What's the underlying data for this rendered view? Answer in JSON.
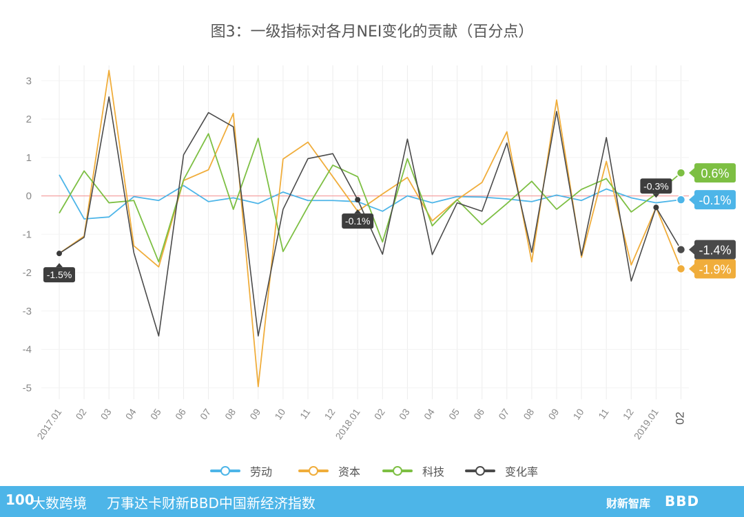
{
  "chart_data": {
    "type": "line",
    "title": "图3：一级指标对各月NEI变化的贡献（百分点）",
    "x": [
      "2017.01",
      "02",
      "03",
      "04",
      "05",
      "06",
      "07",
      "08",
      "09",
      "10",
      "11",
      "12",
      "2018.01",
      "02",
      "03",
      "04",
      "05",
      "06",
      "07",
      "08",
      "09",
      "10",
      "11",
      "12",
      "2019.01",
      "02"
    ],
    "ylim": [
      -5.3,
      3.4
    ],
    "yticks": [
      3,
      2,
      1,
      0,
      -1,
      -2,
      -3,
      -4,
      -5
    ],
    "grid": true,
    "legend_position": "bottom",
    "series": [
      {
        "name": "劳动",
        "color": "#4db5e8",
        "values": [
          0.55,
          -0.6,
          -0.55,
          -0.02,
          -0.12,
          0.27,
          -0.15,
          -0.05,
          -0.2,
          0.1,
          -0.12,
          -0.12,
          -0.15,
          -0.4,
          0.0,
          -0.18,
          -0.02,
          -0.03,
          -0.08,
          -0.15,
          0.02,
          -0.12,
          0.18,
          -0.05,
          -0.18,
          -0.1
        ]
      },
      {
        "name": "资本",
        "color": "#f0ad3b",
        "values": [
          -1.5,
          -1.05,
          3.27,
          -1.3,
          -1.85,
          0.4,
          0.68,
          2.15,
          -4.97,
          0.96,
          1.4,
          0.5,
          -0.4,
          0.05,
          0.48,
          -0.65,
          -0.1,
          0.35,
          1.67,
          -1.72,
          2.5,
          -1.6,
          0.9,
          -1.8,
          -0.3,
          -1.9
        ]
      },
      {
        "name": "科技",
        "color": "#7dbf43",
        "values": [
          -0.45,
          0.65,
          -0.18,
          -0.12,
          -1.72,
          0.42,
          1.62,
          -0.35,
          1.5,
          -1.45,
          -0.28,
          0.8,
          0.5,
          -1.2,
          0.97,
          -0.78,
          -0.1,
          -0.75,
          -0.2,
          0.38,
          -0.35,
          0.17,
          0.45,
          -0.42,
          0.05,
          0.6
        ]
      },
      {
        "name": "变化率",
        "color": "#4a4a4a",
        "values": [
          -1.5,
          -1.08,
          2.58,
          -1.48,
          -3.65,
          1.07,
          2.17,
          1.8,
          -3.65,
          -0.35,
          0.97,
          1.1,
          -0.1,
          -1.52,
          1.48,
          -1.53,
          -0.18,
          -0.4,
          1.38,
          -1.47,
          2.2,
          -1.55,
          1.52,
          -2.22,
          -0.3,
          -1.4
        ]
      }
    ],
    "annotations": [
      {
        "text": "-1.5%",
        "index": 0,
        "series": "变化率"
      },
      {
        "text": "-0.1%",
        "index": 12,
        "series": "变化率"
      },
      {
        "text": "-0.3%",
        "index": 24,
        "series": "变化率"
      }
    ],
    "end_labels": [
      {
        "text": "0.6%",
        "series": "科技"
      },
      {
        "text": "-0.1%",
        "series": "劳动"
      },
      {
        "text": "-1.4%",
        "series": "变化率"
      },
      {
        "text": "-1.9%",
        "series": "资本"
      }
    ]
  },
  "footer": {
    "logo": "100",
    "brand": "大数跨境",
    "text": "万事达卡财新BBD中国新经济指数",
    "right1": "财新智库",
    "right2": "BBD"
  }
}
